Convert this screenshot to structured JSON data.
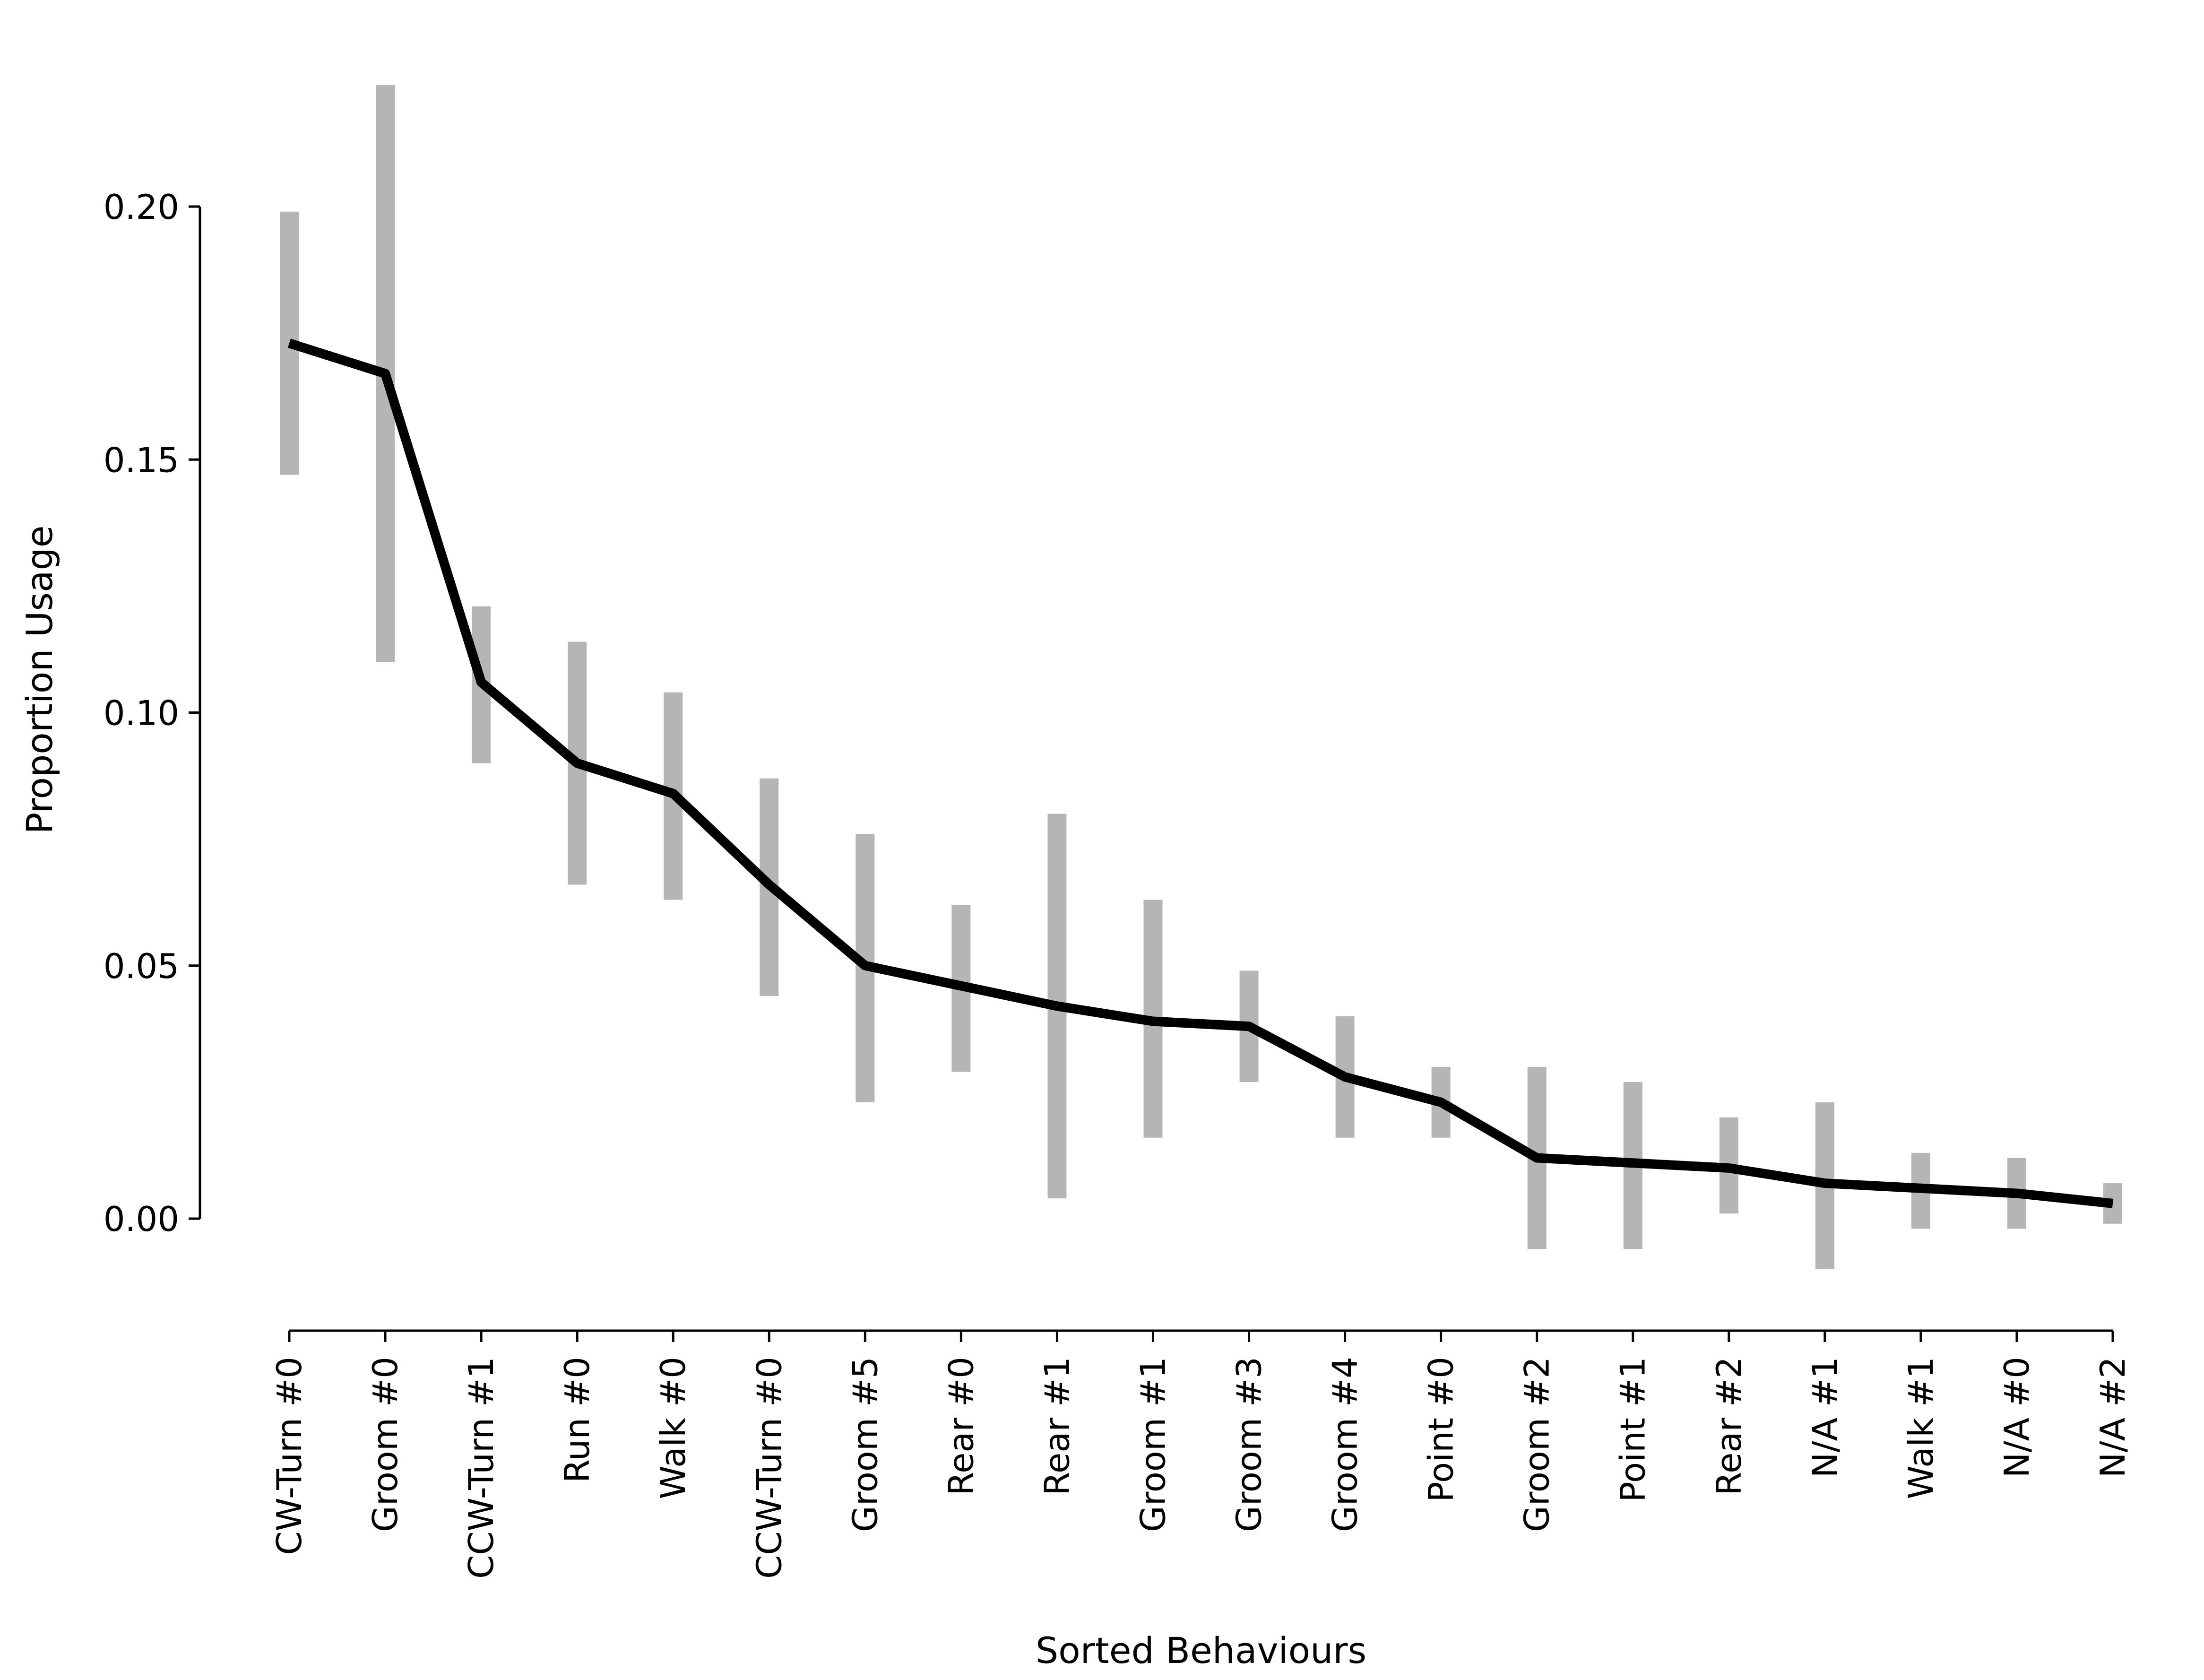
{
  "chart_data": {
    "type": "line",
    "title": "",
    "xlabel": "Sorted Behaviours",
    "ylabel": "Proportion Usage",
    "ylim": [
      -0.02,
      0.225
    ],
    "yticks": [
      0.0,
      0.05,
      0.1,
      0.15,
      0.2
    ],
    "ytick_labels": [
      "0.00",
      "0.05",
      "0.10",
      "0.15",
      "0.20"
    ],
    "grid": false,
    "categories": [
      "CW-Turn #0",
      "Groom #0",
      "CCW-Turn #1",
      "Run #0",
      "Walk #0",
      "CCW-Turn #0",
      "Groom #5",
      "Rear #0",
      "Rear #1",
      "Groom #1",
      "Groom #3",
      "Groom #4",
      "Point #0",
      "Groom #2",
      "Point #1",
      "Rear #2",
      "N/A #1",
      "Walk #1",
      "N/A #0",
      "N/A #2"
    ],
    "series": [
      {
        "values": [
          0.173,
          0.167,
          0.106,
          0.09,
          0.084,
          0.066,
          0.05,
          0.046,
          0.042,
          0.039,
          0.038,
          0.028,
          0.023,
          0.012,
          0.011,
          0.01,
          0.007,
          0.006,
          0.005,
          0.003
        ],
        "error_low": [
          0.147,
          0.11,
          0.09,
          0.066,
          0.063,
          0.044,
          0.023,
          0.029,
          0.004,
          0.016,
          0.027,
          0.016,
          0.016,
          -0.006,
          -0.006,
          0.001,
          -0.01,
          -0.002,
          -0.002,
          -0.001
        ],
        "error_high": [
          0.199,
          0.224,
          0.121,
          0.114,
          0.104,
          0.087,
          0.076,
          0.062,
          0.08,
          0.063,
          0.049,
          0.04,
          0.03,
          0.03,
          0.027,
          0.02,
          0.023,
          0.013,
          0.012,
          0.007
        ]
      }
    ],
    "colors": {
      "line": "#000000",
      "error_bar": "#b5b5b8"
    }
  }
}
